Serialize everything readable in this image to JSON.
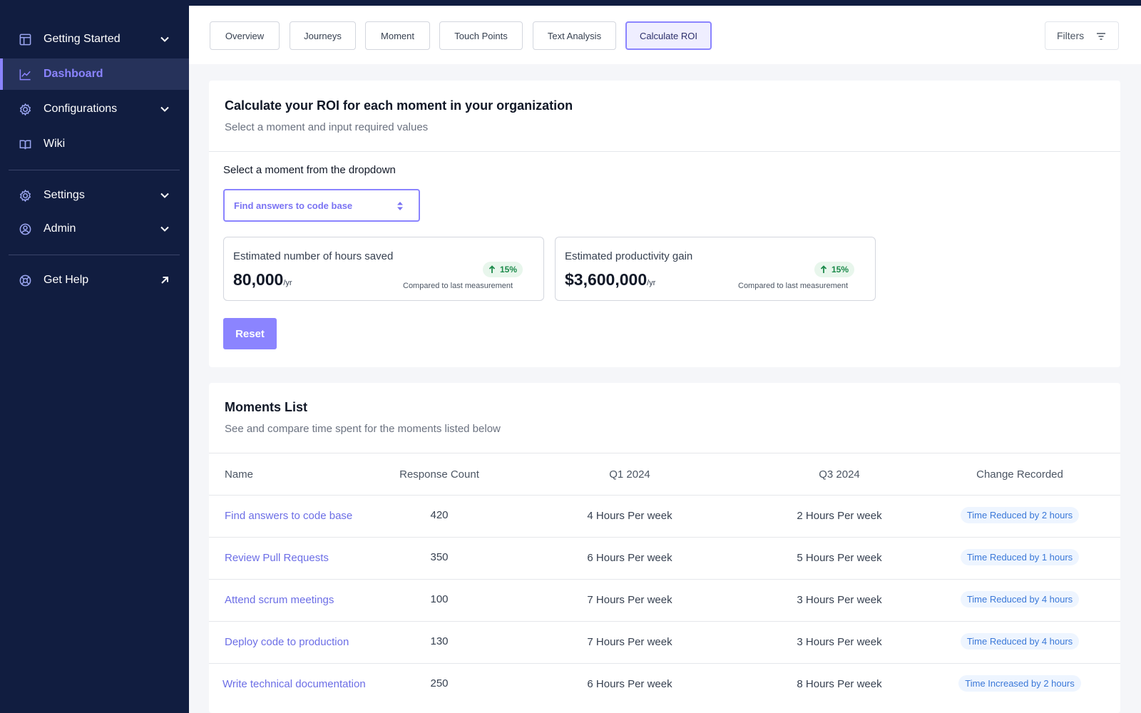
{
  "sidebar": {
    "items": [
      {
        "label": "Getting Started",
        "icon": "layout-icon"
      },
      {
        "label": "Dashboard",
        "icon": "chart-line-icon"
      },
      {
        "label": "Configurations",
        "icon": "gear-icon"
      },
      {
        "label": "Wiki",
        "icon": "book-icon"
      },
      {
        "label": "Settings",
        "icon": "gear-icon"
      },
      {
        "label": "Admin",
        "icon": "user-circle-icon"
      },
      {
        "label": "Get Help",
        "icon": "help-lifebuoy-icon"
      }
    ]
  },
  "tabs": [
    "Overview",
    "Journeys",
    "Moment",
    "Touch Points",
    "Text Analysis",
    "Calculate ROI"
  ],
  "filters_label": "Filters",
  "roi": {
    "title": "Calculate your ROI for each moment in your organization",
    "subtitle": "Select a moment and input required values",
    "select_label": "Select a moment from the dropdown",
    "select_value": "Find answers to code base",
    "metrics": [
      {
        "label": "Estimated number of hours saved",
        "value": "80,000",
        "unit": "/yr",
        "change": "15%",
        "compare": "Compared to last measurement"
      },
      {
        "label": "Estimated productivity gain",
        "value": "$3,600,000",
        "unit": "/yr",
        "change": "15%",
        "compare": "Compared to last measurement"
      }
    ],
    "reset_label": "Reset"
  },
  "moments": {
    "title": "Moments List",
    "subtitle": "See and compare time spent for the moments listed below",
    "columns": [
      "Name",
      "Response Count",
      "Q1 2024",
      "Q3 2024",
      "Change Recorded"
    ],
    "rows": [
      {
        "name": "Find answers to code base",
        "count": "420",
        "q1": "4 Hours Per week",
        "q3": "2 Hours Per week",
        "change": "Time Reduced by 2 hours"
      },
      {
        "name": "Review Pull Requests",
        "count": "350",
        "q1": "6 Hours Per week",
        "q3": "5 Hours Per week",
        "change": "Time Reduced by 1 hours"
      },
      {
        "name": "Attend scrum meetings",
        "count": "100",
        "q1": "7 Hours Per week",
        "q3": "3 Hours Per week",
        "change": "Time Reduced by 4 hours"
      },
      {
        "name": "Deploy code to production",
        "count": "130",
        "q1": "7 Hours Per week",
        "q3": "3 Hours Per week",
        "change": "Time Reduced by 4 hours"
      },
      {
        "name": "Write technical documentation",
        "count": "250",
        "q1": "6 Hours Per week",
        "q3": "8 Hours Per week",
        "change": "Time Increased by 2 hours"
      }
    ]
  },
  "colors": {
    "sidebar_bg": "#111d40",
    "accent": "#8b84ff",
    "link": "#6c6ee6",
    "positive": "#1b8a4a",
    "change_badge": "#3a78d8"
  }
}
